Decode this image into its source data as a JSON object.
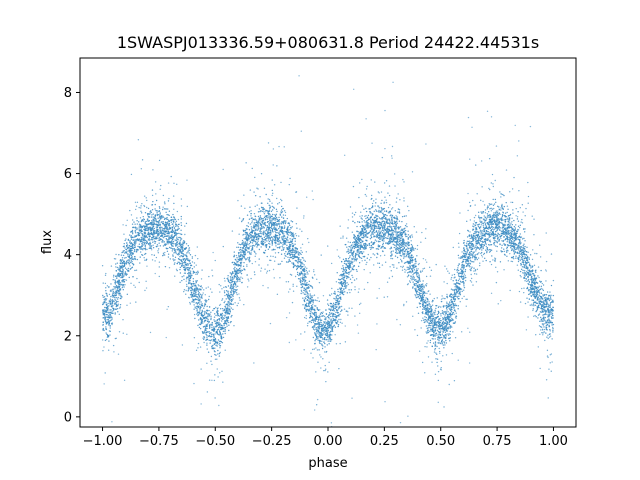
{
  "chart_data": {
    "type": "scatter",
    "title": "1SWASPJ013336.59+080631.8 Period 24422.44531s",
    "xlabel": "phase",
    "ylabel": "flux",
    "xlim": [
      -1.1,
      1.1
    ],
    "ylim": [
      -0.25,
      8.85
    ],
    "xticks": [
      -1.0,
      -0.75,
      -0.5,
      -0.25,
      0.0,
      0.25,
      0.5,
      0.75,
      1.0
    ],
    "xtick_labels": [
      "−1.00",
      "−0.75",
      "−0.50",
      "−0.25",
      "0.00",
      "0.25",
      "0.50",
      "0.75",
      "1.00"
    ],
    "yticks": [
      0,
      2,
      4,
      6,
      8
    ],
    "ytick_labels": [
      "0",
      "2",
      "4",
      "6",
      "8"
    ],
    "grid": false,
    "point_color": "#3b8bc2",
    "series": [
      {
        "x": [
          -1.0,
          -0.975,
          -0.95,
          -0.925,
          -0.9,
          -0.875,
          -0.85,
          -0.825,
          -0.8,
          -0.775,
          -0.75,
          -0.725,
          -0.7,
          -0.675,
          -0.65,
          -0.625,
          -0.6,
          -0.575,
          -0.55,
          -0.525,
          -0.5,
          -0.475,
          -0.45,
          -0.425,
          -0.4,
          -0.375,
          -0.35,
          -0.325,
          -0.3,
          -0.275,
          -0.25,
          -0.225,
          -0.2,
          -0.175,
          -0.15,
          -0.125,
          -0.1,
          -0.075,
          -0.05,
          -0.025,
          0.0,
          0.025,
          0.05,
          0.075,
          0.1,
          0.125,
          0.15,
          0.175,
          0.2,
          0.225,
          0.25,
          0.275,
          0.3,
          0.325,
          0.35,
          0.375,
          0.4,
          0.425,
          0.45,
          0.475,
          0.5,
          0.525,
          0.55,
          0.575,
          0.6,
          0.625,
          0.65,
          0.675,
          0.7,
          0.725,
          0.75,
          0.775,
          0.8,
          0.825,
          0.85,
          0.875,
          0.9,
          0.925,
          0.95,
          0.975,
          1.0
        ],
        "y": [
          2.5,
          2.4,
          2.9,
          3.4,
          3.8,
          4.1,
          4.35,
          4.5,
          4.6,
          4.7,
          4.7,
          4.65,
          4.55,
          4.4,
          4.1,
          3.7,
          3.2,
          2.8,
          2.4,
          2.2,
          2.1,
          2.2,
          2.6,
          3.2,
          3.7,
          4.1,
          4.35,
          4.5,
          4.6,
          4.65,
          4.65,
          4.6,
          4.5,
          4.35,
          4.1,
          3.7,
          3.2,
          2.7,
          2.3,
          2.15,
          2.2,
          2.5,
          3.0,
          3.5,
          3.9,
          4.2,
          4.4,
          4.55,
          4.6,
          4.65,
          4.65,
          4.6,
          4.5,
          4.4,
          4.15,
          3.75,
          3.25,
          2.8,
          2.4,
          2.2,
          2.15,
          2.3,
          2.7,
          3.2,
          3.7,
          4.1,
          4.35,
          4.5,
          4.6,
          4.7,
          4.7,
          4.65,
          4.55,
          4.4,
          4.15,
          3.8,
          3.4,
          3.0,
          2.7,
          2.55,
          2.5
        ]
      }
    ]
  }
}
